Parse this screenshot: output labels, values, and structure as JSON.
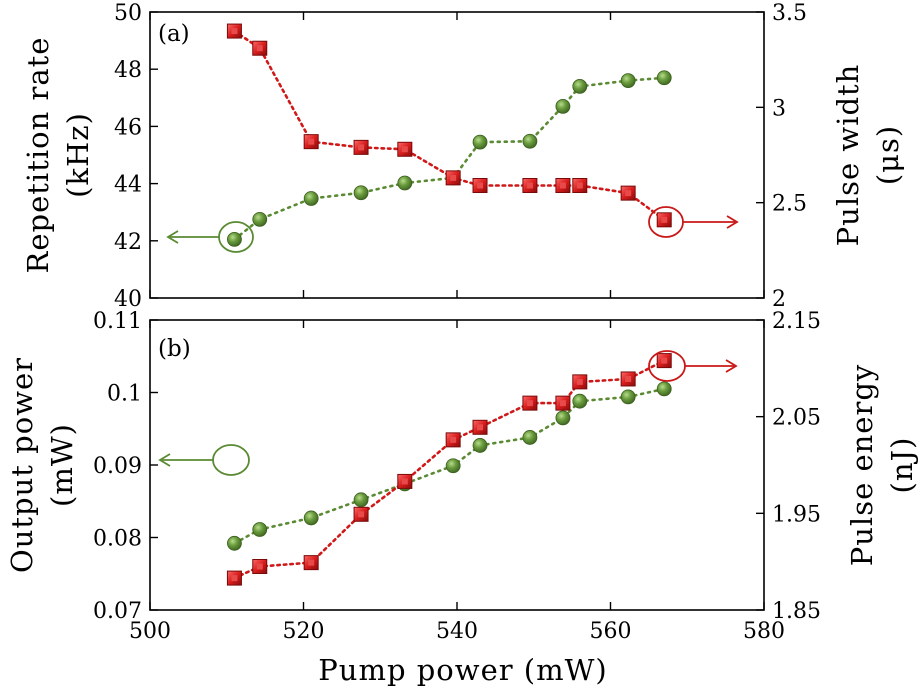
{
  "chart_data": [
    {
      "type": "line",
      "panel_label": "(a)",
      "xlim": [
        500,
        580
      ],
      "left_axis": {
        "label_line1": "Repetition rate",
        "label_line2": "(kHz)",
        "ylim": [
          40,
          50
        ],
        "ticks": [
          40,
          42,
          44,
          46,
          48,
          50
        ],
        "tick_labels": [
          "40",
          "42",
          "44",
          "46",
          "48",
          "50"
        ]
      },
      "right_axis": {
        "label_line1": "Pulse width",
        "label_line2": "(μs)",
        "ylim": [
          2,
          3.5
        ],
        "ticks": [
          2,
          2.5,
          3,
          3.5
        ],
        "tick_labels": [
          "2",
          "2.5",
          "3",
          "3.5"
        ]
      },
      "series": [
        {
          "name": "Repetition rate",
          "axis": "left",
          "marker": "circle",
          "color": "#5a8a32",
          "x": [
            511,
            514.3,
            521,
            527.5,
            533.2,
            539.5,
            543,
            549.5,
            553.8,
            556,
            562.3,
            567
          ],
          "values": [
            42.05,
            42.75,
            43.48,
            43.68,
            44.02,
            44.2,
            45.45,
            45.48,
            46.7,
            47.4,
            47.6,
            47.7
          ]
        },
        {
          "name": "Pulse width",
          "axis": "right",
          "marker": "square",
          "color": "#d01818",
          "x": [
            511,
            514.3,
            521,
            527.5,
            533.2,
            539.5,
            543,
            549.5,
            553.8,
            556,
            562.3,
            567
          ],
          "values": [
            3.4,
            3.31,
            2.82,
            2.79,
            2.78,
            2.63,
            2.59,
            2.59,
            2.59,
            2.59,
            2.55,
            2.41
          ]
        }
      ]
    },
    {
      "type": "line",
      "panel_label": "(b)",
      "xlim": [
        500,
        580
      ],
      "left_axis": {
        "label_line1": "Output power",
        "label_line2": "(mW)",
        "ylim": [
          0.07,
          0.11
        ],
        "ticks": [
          0.07,
          0.08,
          0.09,
          0.1,
          0.11
        ],
        "tick_labels": [
          "0.07",
          "0.08",
          "0.09",
          "0.1",
          "0.11"
        ]
      },
      "right_axis": {
        "label_line1": "Pulse energy",
        "label_line2": "(nJ)",
        "ylim": [
          1.85,
          2.15
        ],
        "ticks": [
          1.85,
          1.95,
          2.05,
          2.15
        ],
        "tick_labels": [
          "1.85",
          "1.95",
          "2.05",
          "2.15"
        ]
      },
      "series": [
        {
          "name": "Output power",
          "axis": "left",
          "marker": "circle",
          "color": "#5a8a32",
          "x": [
            511,
            514.3,
            521,
            527.5,
            533.2,
            539.5,
            543,
            549.5,
            553.8,
            556,
            562.3,
            567
          ],
          "values": [
            0.0792,
            0.0811,
            0.0827,
            0.0852,
            0.0874,
            0.0899,
            0.0927,
            0.0938,
            0.0965,
            0.0988,
            0.0994,
            0.1005
          ]
        },
        {
          "name": "Pulse energy",
          "axis": "right",
          "marker": "square",
          "color": "#d01818",
          "x": [
            511,
            514.3,
            521,
            527.5,
            533.2,
            539.5,
            543,
            549.5,
            553.8,
            556,
            562.3,
            567
          ],
          "values": [
            1.883,
            1.895,
            1.899,
            1.949,
            1.983,
            2.026,
            2.039,
            2.064,
            2.064,
            2.086,
            2.089,
            2.108
          ]
        }
      ]
    }
  ],
  "x_axis": {
    "label": "Pump power (mW)",
    "ticks": [
      500,
      520,
      540,
      560,
      580
    ],
    "tick_labels": [
      "500",
      "520",
      "540",
      "560",
      "580"
    ]
  },
  "colors": {
    "green_series": "#5a8a32",
    "red_series": "#d01818",
    "axis": "#000000"
  }
}
